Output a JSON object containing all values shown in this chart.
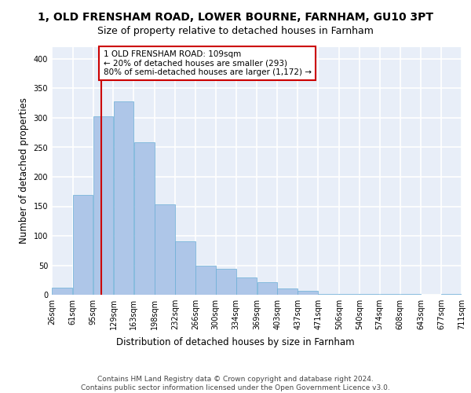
{
  "title": "1, OLD FRENSHAM ROAD, LOWER BOURNE, FARNHAM, GU10 3PT",
  "subtitle": "Size of property relative to detached houses in Farnham",
  "xlabel": "Distribution of detached houses by size in Farnham",
  "ylabel": "Number of detached properties",
  "bar_color": "#aec6e8",
  "bar_edge_color": "#6baed6",
  "background_color": "#e8eef8",
  "grid_color": "#ffffff",
  "annotation_text": "1 OLD FRENSHAM ROAD: 109sqm\n← 20% of detached houses are smaller (293)\n80% of semi-detached houses are larger (1,172) →",
  "annotation_box_color": "#ffffff",
  "annotation_box_edge_color": "#cc0000",
  "property_line_color": "#cc0000",
  "property_value": 109,
  "footer_text": "Contains HM Land Registry data © Crown copyright and database right 2024.\nContains public sector information licensed under the Open Government Licence v3.0.",
  "bins": [
    26,
    61,
    95,
    129,
    163,
    198,
    232,
    266,
    300,
    334,
    369,
    403,
    437,
    471,
    506,
    540,
    574,
    608,
    643,
    677,
    711
  ],
  "bar_heights": [
    12,
    170,
    303,
    328,
    259,
    153,
    91,
    50,
    44,
    30,
    22,
    11,
    7,
    1,
    2,
    2,
    1,
    1,
    0,
    1
  ],
  "ylim": [
    0,
    420
  ],
  "yticks": [
    0,
    50,
    100,
    150,
    200,
    250,
    300,
    350,
    400
  ],
  "title_fontsize": 10,
  "subtitle_fontsize": 9,
  "tick_fontsize": 7,
  "ylabel_fontsize": 8.5,
  "xlabel_fontsize": 8.5,
  "footer_fontsize": 6.5,
  "annotation_fontsize": 7.5
}
